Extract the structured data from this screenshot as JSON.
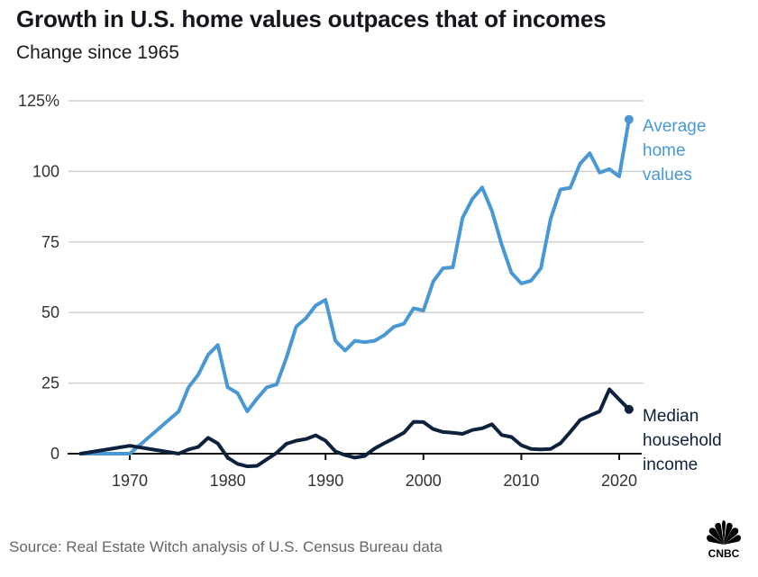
{
  "header": {
    "title": "Growth in U.S. home values outpaces that of incomes",
    "subtitle": "Change since 1965"
  },
  "footer": {
    "source": "Source: Real Estate Witch analysis of U.S. Census Bureau data",
    "logo_text": "CNBC",
    "logo_icon": "cnbc-peacock-icon"
  },
  "colors": {
    "home_values": "#4a98d3",
    "household_income": "#0d213d",
    "grid": "#d0d0d0",
    "axis": "#111111"
  },
  "chart_data": {
    "type": "line",
    "title": "Growth in U.S. home values outpaces that of incomes",
    "subtitle": "Change since 1965",
    "xlabel": "",
    "ylabel": "",
    "xlim": [
      1965,
      2021
    ],
    "ylim": [
      0,
      125
    ],
    "x_ticks": [
      1970,
      1980,
      1990,
      2000,
      2010,
      2020
    ],
    "x_tick_labels": [
      "1970",
      "1980",
      "1990",
      "2000",
      "2010",
      "2020"
    ],
    "y_ticks": [
      0,
      25,
      50,
      75,
      100,
      125
    ],
    "y_tick_labels": [
      "0",
      "25",
      "50",
      "75",
      "100",
      "125%"
    ],
    "grid": true,
    "legend": "direct labels at line ends (right)",
    "series": [
      {
        "name": "Average home values",
        "label_lines": [
          "Average",
          "home",
          "values"
        ],
        "color": "#4a98d3",
        "x": [
          1965,
          1970,
          1975,
          1976,
          1977,
          1978,
          1979,
          1980,
          1981,
          1982,
          1983,
          1984,
          1985,
          1986,
          1987,
          1988,
          1989,
          1990,
          1991,
          1992,
          1993,
          1994,
          1995,
          1996,
          1997,
          1998,
          1999,
          2000,
          2001,
          2002,
          2003,
          2004,
          2005,
          2006,
          2007,
          2008,
          2009,
          2010,
          2011,
          2012,
          2013,
          2014,
          2015,
          2016,
          2017,
          2018,
          2019,
          2020,
          2021
        ],
        "values": [
          0,
          0,
          15,
          23.5,
          28,
          35,
          38.5,
          23.5,
          21.5,
          15,
          19.5,
          23.5,
          24.5,
          34,
          45,
          48,
          52.5,
          54.5,
          40,
          36.5,
          40,
          39.5,
          40,
          42,
          45,
          46,
          51.5,
          50.7,
          61,
          65.7,
          66,
          83.5,
          90.2,
          94.3,
          86,
          74,
          64,
          60.3,
          61.3,
          65.7,
          83.3,
          93.6,
          94.2,
          102.7,
          106.4,
          99.6,
          100.8,
          98.2,
          118.4
        ]
      },
      {
        "name": "Median household income",
        "label_lines": [
          "Median",
          "household",
          "income"
        ],
        "color": "#0d213d",
        "x": [
          1965,
          1970,
          1975,
          1976,
          1977,
          1978,
          1979,
          1980,
          1981,
          1982,
          1983,
          1984,
          1985,
          1986,
          1987,
          1988,
          1989,
          1990,
          1991,
          1992,
          1993,
          1994,
          1995,
          1996,
          1997,
          1998,
          1999,
          2000,
          2001,
          2002,
          2003,
          2004,
          2005,
          2006,
          2007,
          2008,
          2009,
          2010,
          2011,
          2012,
          2013,
          2014,
          2015,
          2016,
          2017,
          2018,
          2019,
          2020,
          2021
        ],
        "values": [
          0,
          2.8,
          0,
          1.5,
          2.4,
          5.6,
          3.6,
          -1.4,
          -3.6,
          -4.5,
          -4.3,
          -2,
          0.3,
          3.5,
          4.6,
          5.2,
          6.5,
          4.6,
          0.8,
          -0.5,
          -1.4,
          -0.8,
          1.8,
          3.7,
          5.5,
          7.4,
          11.3,
          11.2,
          8.7,
          7.7,
          7.4,
          7,
          8.4,
          9,
          10.4,
          6.6,
          5.9,
          3,
          1.7,
          1.5,
          1.7,
          3.7,
          7.7,
          11.9,
          13.5,
          15,
          22.8,
          19.2,
          15.7
        ]
      }
    ]
  }
}
